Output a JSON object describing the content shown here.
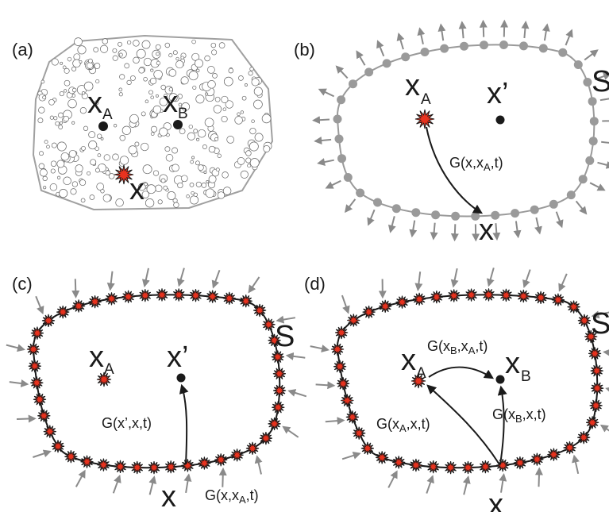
{
  "panels": {
    "a": {
      "label": "(a)",
      "point_a": {
        "main": "x",
        "sub": "A"
      },
      "point_b": {
        "main": "x",
        "sub": "B"
      },
      "source": {
        "main": "x"
      }
    },
    "b": {
      "label": "(b)",
      "surface": "S",
      "point_a": {
        "main": "x",
        "sub": "A"
      },
      "receiver": {
        "main": "x’"
      },
      "boundary_point": {
        "main": "x"
      },
      "green": {
        "pre": "G(x,x",
        "sub": "A",
        "post": ",t)"
      }
    },
    "c": {
      "label": "(c)",
      "surface": "S",
      "point_a": {
        "main": "x",
        "sub": "A"
      },
      "receiver": {
        "main": "x’"
      },
      "boundary_point": {
        "main": "x"
      },
      "green_inner": {
        "text": "G(x’,x,t)"
      },
      "green_outer": {
        "pre": "G(x,x",
        "sub": "A",
        "post": ",t)"
      }
    },
    "d": {
      "label": "(d)",
      "surface": "S",
      "point_a": {
        "main": "x",
        "sub": "A"
      },
      "point_b": {
        "main": "x",
        "sub": "B"
      },
      "boundary_point": {
        "main": "x"
      },
      "green_ab": {
        "pre": "G(x",
        "sub1": "B",
        "mid": ",x",
        "sub2": "A",
        "post": ",t)"
      },
      "green_a": {
        "pre": "G(x",
        "sub": "A",
        "post": ",x,t)"
      },
      "green_b": {
        "pre": "G(x",
        "sub": "B",
        "post": ",x,t)"
      }
    }
  },
  "colors": {
    "medium_outline": "#a0a0a0",
    "boundary_gray": "#9a9a9a",
    "arrow_gray": "#8a8a8a",
    "source_red": "#e8321e",
    "ink": "#1a1a1a"
  }
}
